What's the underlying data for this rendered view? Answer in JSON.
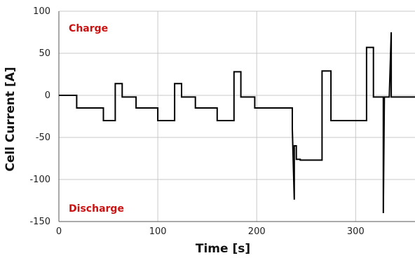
{
  "chart_data": {
    "type": "line",
    "title": "",
    "xlabel": "Time [s]",
    "ylabel": "Cell Current [A]",
    "xlim": [
      0,
      360
    ],
    "ylim": [
      -150,
      100
    ],
    "xticks": [
      0,
      100,
      200,
      300
    ],
    "yticks": [
      -150,
      -100,
      -50,
      0,
      50,
      100
    ],
    "xtick_labels": [
      "0",
      "100",
      "200",
      "300"
    ],
    "ytick_labels": [
      "-150",
      "-100",
      "-50",
      "0",
      "50",
      "100"
    ],
    "grid": true,
    "annotations": [
      {
        "text": "Charge",
        "x": 5,
        "y": 80,
        "color": "#cc1111"
      },
      {
        "text": "Discharge",
        "x": 5,
        "y": -134,
        "color": "#cc1111"
      }
    ],
    "series": [
      {
        "color": "#000000",
        "x": [
          0,
          18,
          18,
          45,
          45,
          57,
          57,
          64,
          64,
          78,
          78,
          100,
          100,
          117,
          117,
          124,
          124,
          138,
          138,
          160,
          160,
          177,
          177,
          184,
          184,
          198,
          198,
          236,
          236,
          238,
          238,
          240,
          240,
          244,
          244,
          266,
          266,
          275,
          275,
          311,
          311,
          318,
          318,
          328,
          328,
          329,
          329,
          334,
          334,
          336,
          336,
          338,
          338,
          360
        ],
        "y": [
          0,
          0,
          -15,
          -15,
          -30,
          -30,
          14,
          14,
          -2,
          -2,
          -15,
          -15,
          -30,
          -30,
          14,
          14,
          -2,
          -2,
          -15,
          -15,
          -30,
          -30,
          28,
          28,
          -2,
          -2,
          -15,
          -15,
          -40,
          -124,
          -60,
          -60,
          -76,
          -76,
          -77,
          -77,
          29,
          29,
          -30,
          -30,
          57,
          57,
          -2,
          -2,
          -140,
          -2,
          -2,
          -2,
          -2,
          75,
          -2,
          -2,
          -2,
          -2
        ]
      }
    ]
  }
}
